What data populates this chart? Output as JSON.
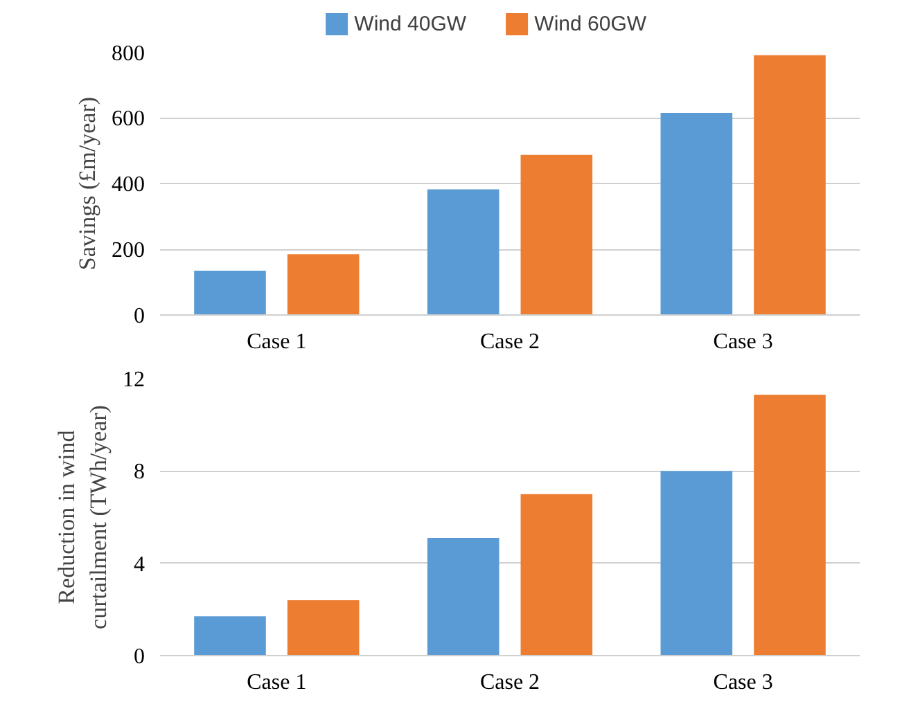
{
  "chart_data": [
    {
      "type": "bar",
      "ylabel": "Savings (£m/year)",
      "categories": [
        "Case 1",
        "Case 2",
        "Case 3"
      ],
      "ylim": [
        0,
        800
      ],
      "yticks": [
        0,
        200,
        400,
        600,
        800
      ],
      "grid": "y",
      "legend": "top",
      "series": [
        {
          "name": "Wind 40GW",
          "color": "#5b9bd5",
          "values": [
            135,
            382,
            615
          ]
        },
        {
          "name": "Wind 60GW",
          "color": "#ed7d31",
          "values": [
            185,
            487,
            790
          ]
        }
      ]
    },
    {
      "type": "bar",
      "ylabel": "Reduction in wind\ncurtailment (TWh/year)",
      "categories": [
        "Case 1",
        "Case 2",
        "Case 3"
      ],
      "ylim": [
        0,
        12
      ],
      "yticks": [
        0,
        4,
        8,
        12
      ],
      "grid": "y",
      "series": [
        {
          "color": "#5b9bd5",
          "values": [
            1.7,
            5.1,
            8.0
          ]
        },
        {
          "color": "#ed7d31",
          "values": [
            2.4,
            7.0,
            11.3
          ]
        }
      ]
    }
  ]
}
